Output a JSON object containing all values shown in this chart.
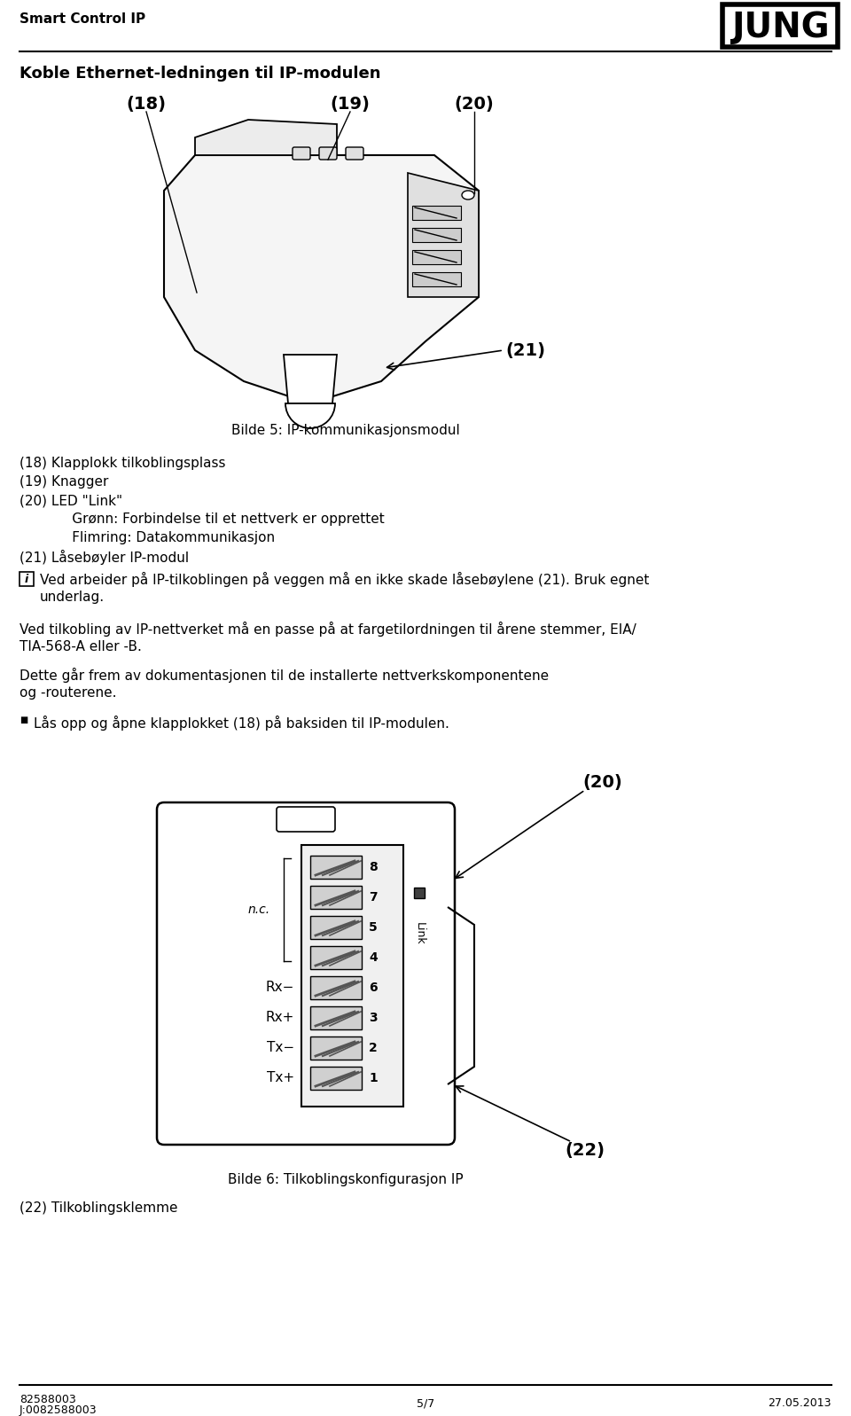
{
  "title_left": "Smart Control IP",
  "title_logo": "JUNG",
  "section_heading": "Koble Ethernet-ledningen til IP-modulen",
  "caption1": "Bilde 5: IP-kommunikasjonsmodul",
  "caption2": "Bilde 6: Tilkoblingskonfigurasjon IP",
  "label_18": "(18)",
  "label_19": "(19)",
  "label_20_top": "(20)",
  "label_21": "(21)",
  "label_20_bot": "(20)",
  "label_22_fig": "(22)",
  "items": [
    "(18) Klapplokk tilkoblingsplass",
    "(19) Knagger",
    "(20) LED \"Link\"",
    "      Grønn: Forbindelse til et nettverk er opprettet",
    "      Flimring: Datakommunikasjon",
    "(21) Låsebøyler IP-modul"
  ],
  "note_icon": "i",
  "note_line1": "Ved arbeider på IP-tilkoblingen på veggen må en ikke skade låsebøylene (21). Bruk egnet",
  "note_line2": "underlag.",
  "body1a": "Ved tilkobling av IP-nettverket må en passe på at fargetilordningen til årene stemmer, EIA/",
  "body1b": "TIA-568-A eller -B.",
  "body2a": "Dette går frem av dokumentasjonen til de installerte nettverkskomponentene",
  "body2b": "og -routerene.",
  "bullet_text": "Lås opp og åpne klapplokket (18) på baksiden til IP-modulen.",
  "footer_left1": "82588003",
  "footer_left2": "J:0082588003",
  "footer_center": "5/7",
  "footer_right": "27.05.2013",
  "label_22_bottom": "(22) Tilkoblingsklemme",
  "wire_numbers": [
    "8",
    "7",
    "5",
    "4",
    "6",
    "3",
    "2",
    "1"
  ],
  "wire_labels_left": [
    "",
    "",
    "",
    "",
    "Rx−",
    "Rx+",
    "Tx−",
    "Tx+"
  ],
  "nc_label": "n.c.",
  "link_label": "Link",
  "bg_color": "#ffffff",
  "text_color": "#000000",
  "gray_light": "#d8d8d8",
  "gray_dark": "#888888"
}
